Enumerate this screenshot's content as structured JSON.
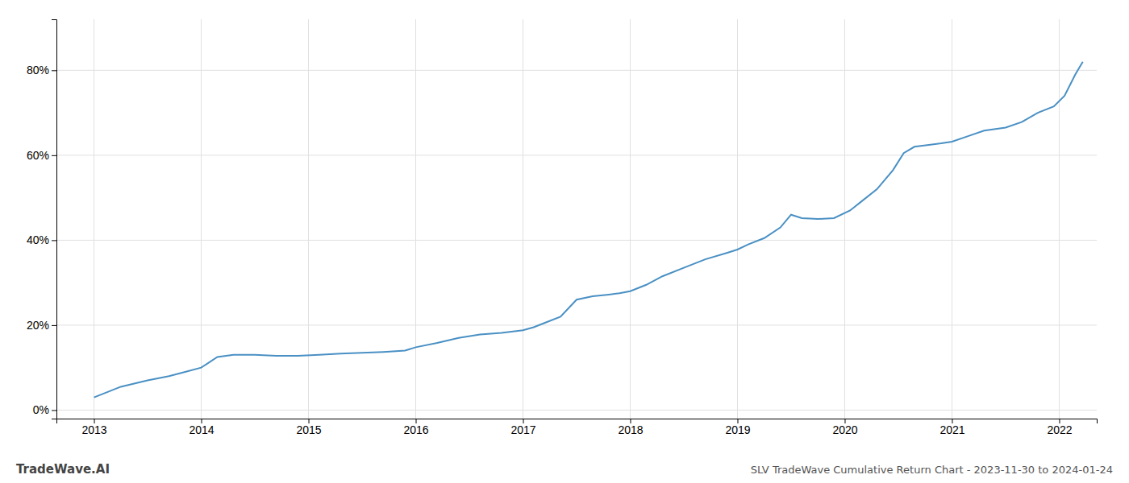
{
  "chart_data": {
    "type": "line",
    "title": "SLV TradeWave Cumulative Return Chart - 2023-11-30 to 2024-01-24",
    "annotations": [
      "TradeWave.AI"
    ],
    "color": "#4a90c4",
    "grid": true,
    "x": [
      2013.0,
      2013.1,
      2013.25,
      2013.5,
      2013.7,
      2013.85,
      2014.0,
      2014.15,
      2014.3,
      2014.5,
      2014.7,
      2014.9,
      2015.1,
      2015.3,
      2015.5,
      2015.7,
      2015.9,
      2016.0,
      2016.2,
      2016.4,
      2016.6,
      2016.8,
      2017.0,
      2017.1,
      2017.2,
      2017.35,
      2017.5,
      2017.65,
      2017.8,
      2017.9,
      2018.0,
      2018.15,
      2018.3,
      2018.5,
      2018.7,
      2018.9,
      2019.0,
      2019.1,
      2019.25,
      2019.4,
      2019.5,
      2019.6,
      2019.75,
      2019.9,
      2020.05,
      2020.15,
      2020.3,
      2020.45,
      2020.55,
      2020.65,
      2020.8,
      2020.9,
      2021.0,
      2021.15,
      2021.3,
      2021.5,
      2021.65,
      2021.8,
      2021.95,
      2022.05,
      2022.15,
      2022.22
    ],
    "values": [
      0.03,
      0.04,
      0.055,
      0.07,
      0.08,
      0.09,
      0.1,
      0.125,
      0.13,
      0.13,
      0.128,
      0.128,
      0.13,
      0.133,
      0.135,
      0.137,
      0.14,
      0.148,
      0.158,
      0.17,
      0.178,
      0.182,
      0.188,
      0.195,
      0.205,
      0.22,
      0.26,
      0.268,
      0.272,
      0.275,
      0.28,
      0.295,
      0.315,
      0.335,
      0.355,
      0.37,
      0.378,
      0.39,
      0.405,
      0.43,
      0.46,
      0.452,
      0.45,
      0.452,
      0.47,
      0.49,
      0.52,
      0.565,
      0.605,
      0.62,
      0.625,
      0.628,
      0.632,
      0.645,
      0.658,
      0.665,
      0.678,
      0.7,
      0.715,
      0.74,
      0.79,
      0.82
    ],
    "xlim": [
      2012.65,
      2022.35
    ],
    "xticks": [
      2013,
      2014,
      2015,
      2016,
      2017,
      2018,
      2019,
      2020,
      2021,
      2022
    ],
    "ylim": [
      -0.02,
      0.92
    ],
    "yticks": [
      {
        "value": 0.0,
        "label": "0%"
      },
      {
        "value": 0.2,
        "label": "20%"
      },
      {
        "value": 0.4,
        "label": "40%"
      },
      {
        "value": 0.6,
        "label": "60%"
      },
      {
        "value": 0.8,
        "label": "80%"
      }
    ]
  }
}
